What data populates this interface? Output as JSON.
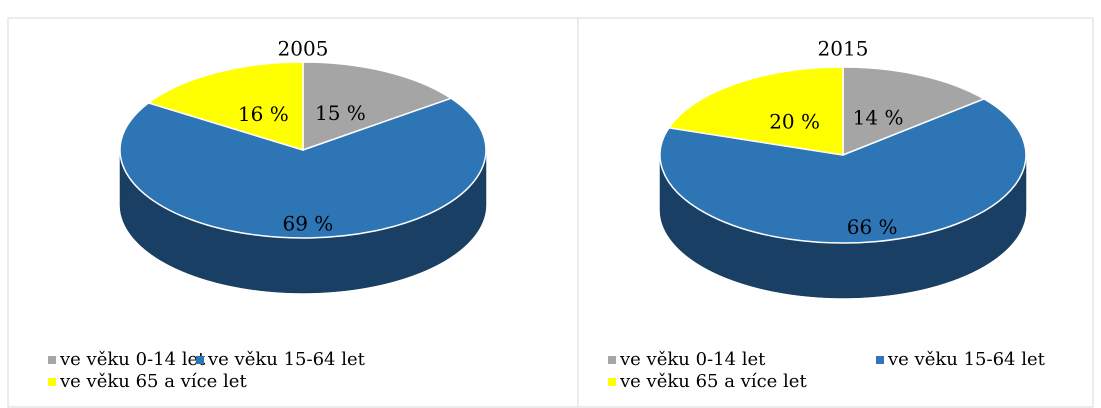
{
  "chart_data": [
    {
      "type": "pie",
      "title": "2005",
      "categories": [
        "ve věku 0-14 let",
        "ve věku 15-64 let",
        "ve věku 65 a více let"
      ],
      "values": [
        15,
        69,
        16
      ],
      "value_labels": [
        "15 %",
        "69 %",
        "16 %"
      ],
      "colors": [
        "#a5a5a5",
        "#2e75b6",
        "#ffff00"
      ]
    },
    {
      "type": "pie",
      "title": "2015",
      "categories": [
        "ve věku 0-14 let",
        "ve věku 15-64 let",
        "ve věku 65 a více let"
      ],
      "values": [
        14,
        66,
        20
      ],
      "value_labels": [
        "14 %",
        "66 %",
        "20 %"
      ],
      "colors": [
        "#a5a5a5",
        "#2e75b6",
        "#ffff00"
      ]
    }
  ]
}
